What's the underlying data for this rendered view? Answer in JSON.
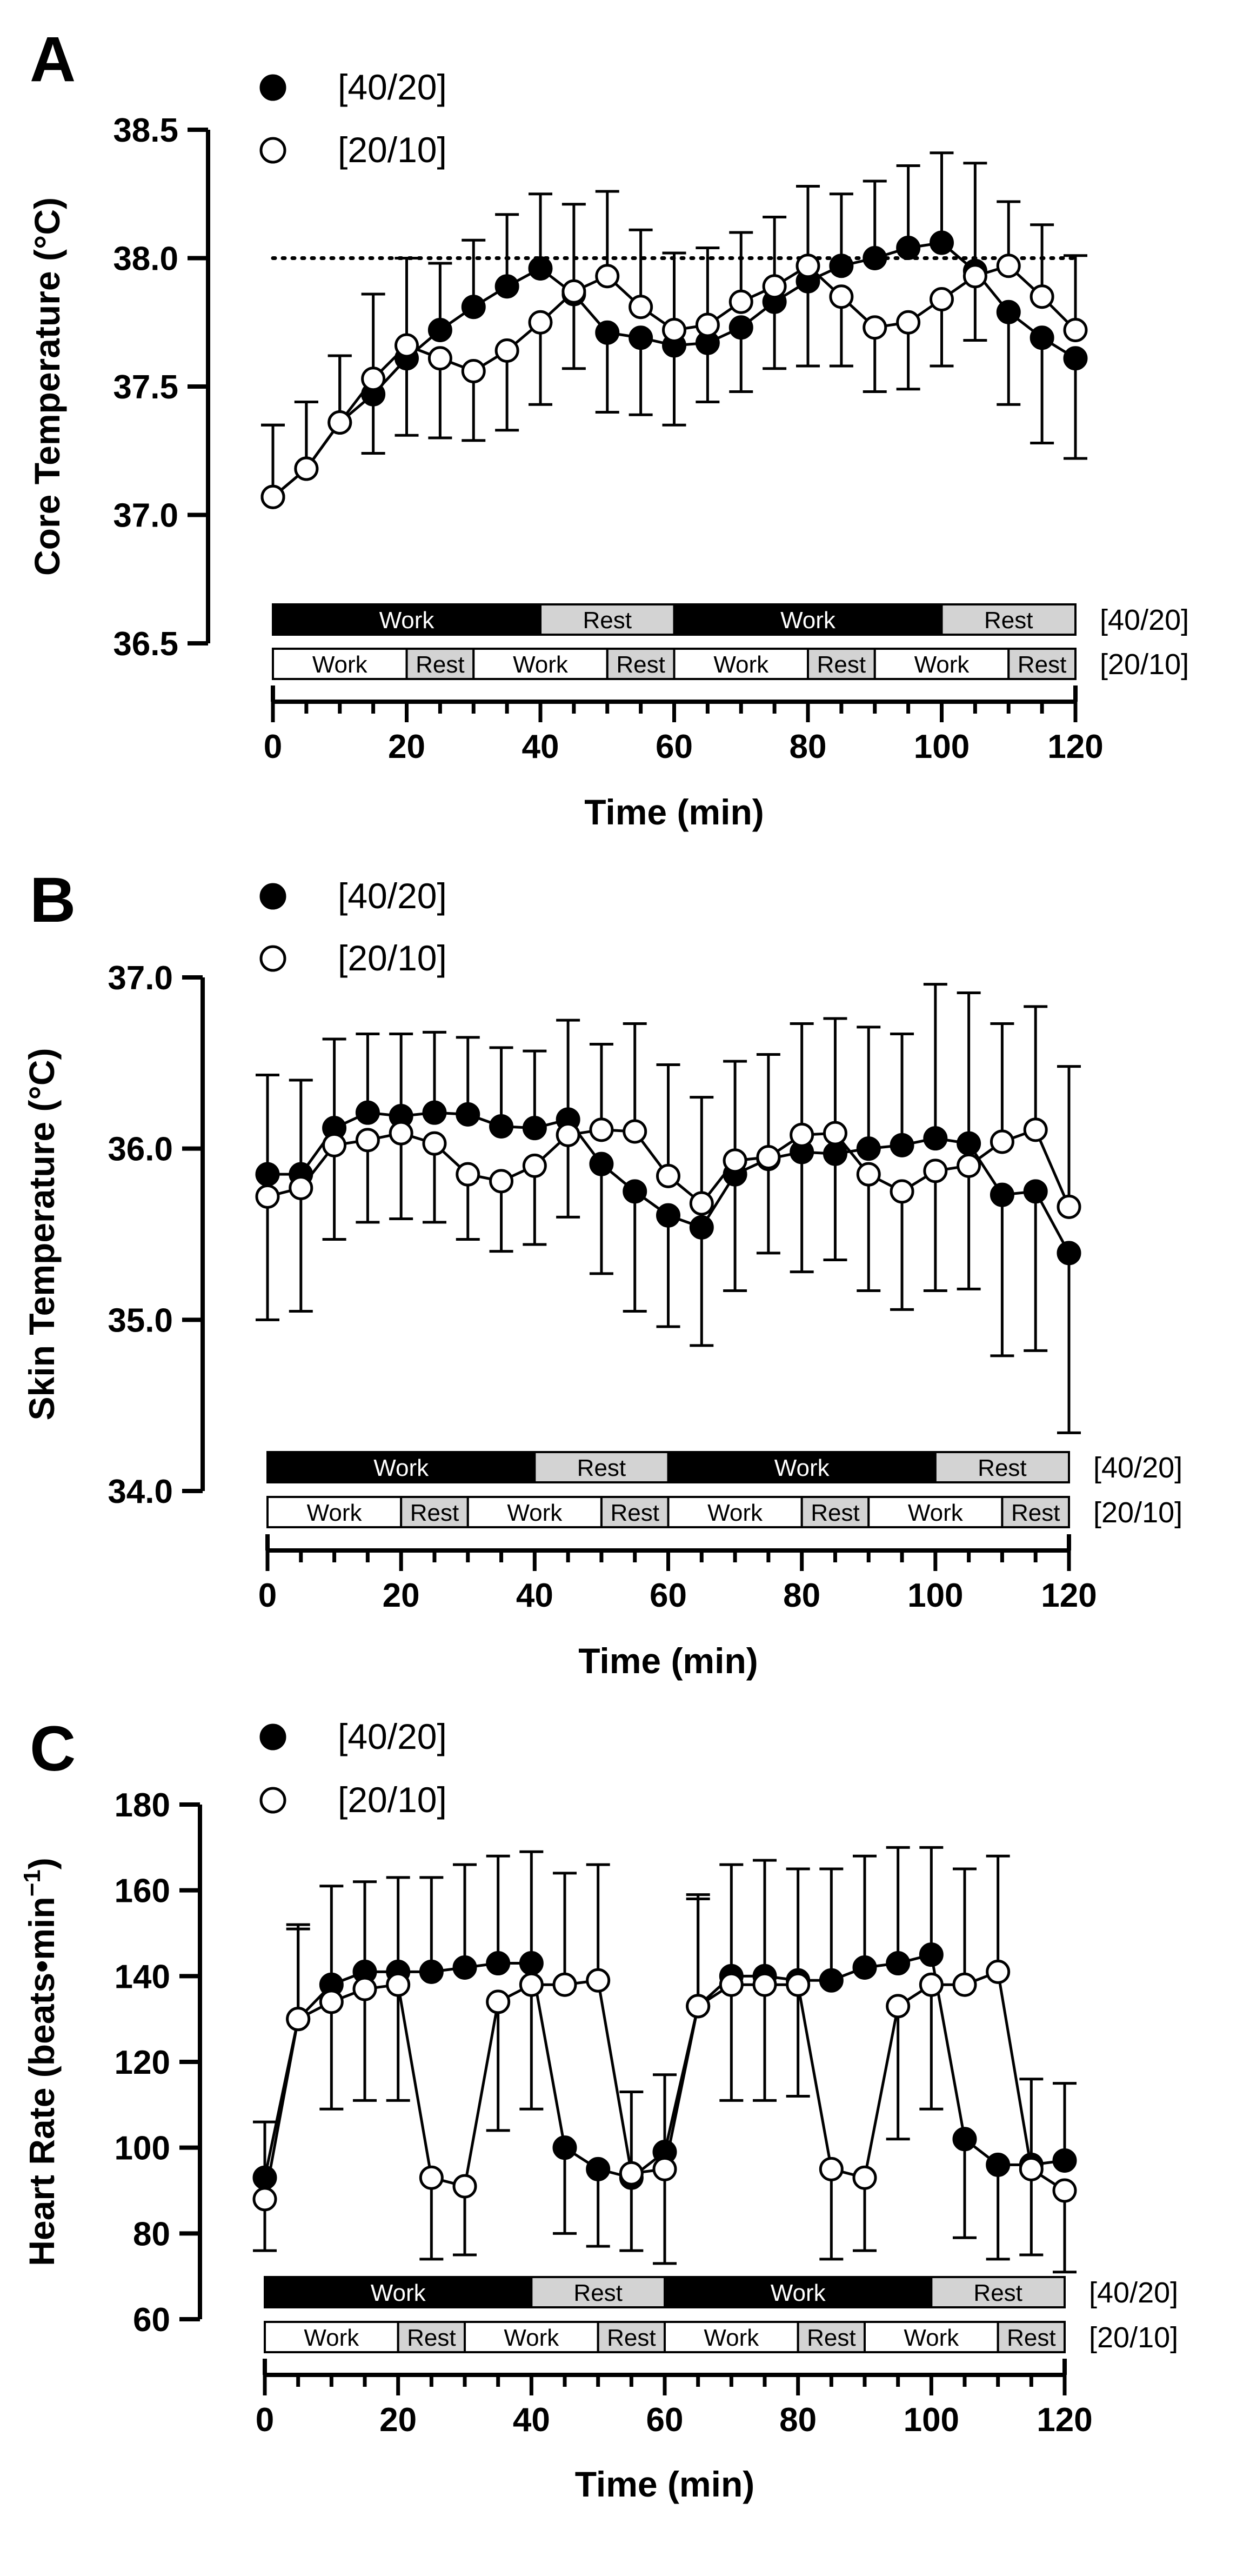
{
  "chart_data": [
    {
      "type": "line",
      "panel_label": "A",
      "xlabel": "Time (min)",
      "ylabel": "Core Temperature (°C)",
      "xlim": [
        0,
        120
      ],
      "ylim": [
        36.5,
        38.5
      ],
      "xticks": [
        "0",
        "20",
        "40",
        "60",
        "80",
        "100",
        "120"
      ],
      "yticks": [
        "36.5",
        "37.0",
        "37.5",
        "38.0",
        "38.5"
      ],
      "reference_line": 38.0,
      "x": [
        0,
        5,
        10,
        15,
        20,
        25,
        30,
        35,
        40,
        45,
        50,
        55,
        60,
        65,
        70,
        75,
        80,
        85,
        90,
        95,
        100,
        105,
        110,
        115,
        120
      ],
      "series": [
        {
          "name": "[40/20]",
          "marker": "filled",
          "values": [
            37.07,
            37.18,
            37.36,
            37.47,
            37.61,
            37.72,
            37.81,
            37.89,
            37.96,
            37.86,
            37.71,
            37.69,
            37.66,
            37.67,
            37.73,
            37.83,
            37.91,
            37.97,
            38.0,
            38.04,
            38.06,
            37.95,
            37.79,
            37.69,
            37.61
          ],
          "errors": [
            0.28,
            0.26,
            0.26,
            0.23,
            0.3,
            0.26,
            0.26,
            0.28,
            0.29,
            0.29,
            0.31,
            0.3,
            0.31,
            0.23,
            0.25,
            0.26,
            0.33,
            0.28,
            0.3,
            0.32,
            0.35,
            0.42,
            0.36,
            0.41,
            0.39
          ]
        },
        {
          "name": "[20/10]",
          "marker": "open",
          "values": [
            37.07,
            37.18,
            37.36,
            37.53,
            37.66,
            37.61,
            37.56,
            37.64,
            37.75,
            37.87,
            37.93,
            37.81,
            37.72,
            37.74,
            37.83,
            37.89,
            37.97,
            37.85,
            37.73,
            37.75,
            37.84,
            37.93,
            37.97,
            37.85,
            37.72
          ],
          "errors": [
            0.28,
            0.26,
            0.26,
            0.33,
            0.34,
            0.31,
            0.27,
            0.31,
            0.32,
            0.34,
            0.33,
            0.3,
            0.3,
            0.3,
            0.27,
            0.27,
            0.31,
            0.27,
            0.25,
            0.26,
            0.26,
            0.25,
            0.25,
            0.28,
            0.29
          ]
        }
      ],
      "schedule_bars": [
        {
          "label": "[40/20]",
          "blocks": [
            {
              "start": 0,
              "end": 40,
              "label": "Work",
              "kind": "work"
            },
            {
              "start": 40,
              "end": 60,
              "label": "Rest",
              "kind": "rest"
            },
            {
              "start": 60,
              "end": 100,
              "label": "Work",
              "kind": "work"
            },
            {
              "start": 100,
              "end": 120,
              "label": "Rest",
              "kind": "rest"
            }
          ]
        },
        {
          "label": "[20/10]",
          "blocks": [
            {
              "start": 0,
              "end": 20,
              "label": "Work",
              "kind": "work"
            },
            {
              "start": 20,
              "end": 30,
              "label": "Rest",
              "kind": "rest"
            },
            {
              "start": 30,
              "end": 50,
              "label": "Work",
              "kind": "work"
            },
            {
              "start": 50,
              "end": 60,
              "label": "Rest",
              "kind": "rest"
            },
            {
              "start": 60,
              "end": 80,
              "label": "Work",
              "kind": "work"
            },
            {
              "start": 80,
              "end": 90,
              "label": "Rest",
              "kind": "rest"
            },
            {
              "start": 90,
              "end": 110,
              "label": "Work",
              "kind": "work"
            },
            {
              "start": 110,
              "end": 120,
              "label": "Rest",
              "kind": "rest"
            }
          ]
        }
      ]
    },
    {
      "type": "line",
      "panel_label": "B",
      "xlabel": "Time (min)",
      "ylabel": "Skin Temperature (°C)",
      "xlim": [
        0,
        120
      ],
      "ylim": [
        34.0,
        37.0
      ],
      "xticks": [
        "0",
        "20",
        "40",
        "60",
        "80",
        "100",
        "120"
      ],
      "yticks": [
        "34.0",
        "35.0",
        "36.0",
        "37.0"
      ],
      "x": [
        0,
        5,
        10,
        15,
        20,
        25,
        30,
        35,
        40,
        45,
        50,
        55,
        60,
        65,
        70,
        75,
        80,
        85,
        90,
        95,
        100,
        105,
        110,
        115,
        120
      ],
      "series": [
        {
          "name": "[40/20]",
          "marker": "filled",
          "values": [
            35.85,
            35.85,
            36.12,
            36.21,
            36.19,
            36.21,
            36.2,
            36.13,
            36.12,
            36.17,
            35.91,
            35.75,
            35.61,
            35.54,
            35.85,
            35.94,
            35.98,
            35.97,
            36.0,
            36.02,
            36.06,
            36.03,
            35.73,
            35.75,
            35.39
          ],
          "errors": [
            0.58,
            0.55,
            0.52,
            0.46,
            0.48,
            0.47,
            0.45,
            0.46,
            0.45,
            0.58,
            0.64,
            0.7,
            0.65,
            0.69,
            0.68,
            0.55,
            0.7,
            0.62,
            0.71,
            0.65,
            0.9,
            0.88,
            0.94,
            0.93,
            1.05
          ]
        },
        {
          "name": "[20/10]",
          "marker": "open",
          "values": [
            35.72,
            35.77,
            36.02,
            36.05,
            36.09,
            36.03,
            35.85,
            35.81,
            35.9,
            36.08,
            36.11,
            36.1,
            35.84,
            35.68,
            35.93,
            35.95,
            36.08,
            36.09,
            35.85,
            35.75,
            35.87,
            35.9,
            36.04,
            36.11,
            35.66
          ],
          "errors": [
            0.72,
            0.72,
            0.55,
            0.48,
            0.5,
            0.46,
            0.38,
            0.41,
            0.46,
            0.48,
            0.5,
            0.63,
            0.65,
            0.62,
            0.58,
            0.6,
            0.65,
            0.67,
            0.68,
            0.69,
            0.7,
            0.72,
            0.69,
            0.72,
            0.82
          ]
        }
      ],
      "schedule_bars": [
        {
          "label": "[40/20]",
          "blocks": [
            {
              "start": 0,
              "end": 40,
              "label": "Work",
              "kind": "work"
            },
            {
              "start": 40,
              "end": 60,
              "label": "Rest",
              "kind": "rest"
            },
            {
              "start": 60,
              "end": 100,
              "label": "Work",
              "kind": "work"
            },
            {
              "start": 100,
              "end": 120,
              "label": "Rest",
              "kind": "rest"
            }
          ]
        },
        {
          "label": "[20/10]",
          "blocks": [
            {
              "start": 0,
              "end": 20,
              "label": "Work",
              "kind": "work"
            },
            {
              "start": 20,
              "end": 30,
              "label": "Rest",
              "kind": "rest"
            },
            {
              "start": 30,
              "end": 50,
              "label": "Work",
              "kind": "work"
            },
            {
              "start": 50,
              "end": 60,
              "label": "Rest",
              "kind": "rest"
            },
            {
              "start": 60,
              "end": 80,
              "label": "Work",
              "kind": "work"
            },
            {
              "start": 80,
              "end": 90,
              "label": "Rest",
              "kind": "rest"
            },
            {
              "start": 90,
              "end": 110,
              "label": "Work",
              "kind": "work"
            },
            {
              "start": 110,
              "end": 120,
              "label": "Rest",
              "kind": "rest"
            }
          ]
        }
      ]
    },
    {
      "type": "line",
      "panel_label": "C",
      "xlabel": "Time (min)",
      "ylabel": "Heart Rate (beats•min",
      "ylabel_superscript": "−1",
      "ylabel_suffix": ")",
      "xlim": [
        0,
        120
      ],
      "ylim": [
        60,
        180
      ],
      "xticks": [
        "0",
        "20",
        "40",
        "60",
        "80",
        "100",
        "120"
      ],
      "yticks": [
        "60",
        "80",
        "100",
        "120",
        "140",
        "160",
        "180"
      ],
      "x": [
        0,
        5,
        10,
        15,
        20,
        25,
        30,
        35,
        40,
        45,
        50,
        55,
        60,
        65,
        70,
        75,
        80,
        85,
        90,
        95,
        100,
        105,
        110,
        115,
        120
      ],
      "series": [
        {
          "name": "[40/20]",
          "marker": "filled",
          "values": [
            93,
            130,
            138,
            141,
            141,
            141,
            142,
            143,
            143,
            100,
            95,
            93,
            99,
            133,
            140,
            140,
            139,
            139,
            142,
            143,
            145,
            102,
            96,
            96,
            97
          ],
          "errors": [
            13,
            21,
            23,
            21,
            22,
            22,
            24,
            25,
            26,
            20,
            18,
            17,
            18,
            26,
            26,
            27,
            26,
            26,
            26,
            27,
            25,
            23,
            22,
            20,
            18
          ]
        },
        {
          "name": "[20/10]",
          "marker": "open",
          "values": [
            88,
            130,
            134,
            137,
            138,
            93,
            91,
            134,
            138,
            138,
            139,
            94,
            95,
            133,
            138,
            138,
            138,
            95,
            93,
            133,
            138,
            138,
            141,
            95,
            90
          ],
          "errors": [
            12,
            22,
            25,
            26,
            27,
            19,
            16,
            30,
            29,
            26,
            27,
            19,
            22,
            25,
            27,
            27,
            26,
            21,
            17,
            31,
            29,
            27,
            27,
            20,
            19
          ]
        }
      ],
      "schedule_bars": [
        {
          "label": "[40/20]",
          "blocks": [
            {
              "start": 0,
              "end": 40,
              "label": "Work",
              "kind": "work"
            },
            {
              "start": 40,
              "end": 60,
              "label": "Rest",
              "kind": "rest"
            },
            {
              "start": 60,
              "end": 100,
              "label": "Work",
              "kind": "work"
            },
            {
              "start": 100,
              "end": 120,
              "label": "Rest",
              "kind": "rest"
            }
          ]
        },
        {
          "label": "[20/10]",
          "blocks": [
            {
              "start": 0,
              "end": 20,
              "label": "Work",
              "kind": "work"
            },
            {
              "start": 20,
              "end": 30,
              "label": "Rest",
              "kind": "rest"
            },
            {
              "start": 30,
              "end": 50,
              "label": "Work",
              "kind": "work"
            },
            {
              "start": 50,
              "end": 60,
              "label": "Rest",
              "kind": "rest"
            },
            {
              "start": 60,
              "end": 80,
              "label": "Work",
              "kind": "work"
            },
            {
              "start": 80,
              "end": 90,
              "label": "Rest",
              "kind": "rest"
            },
            {
              "start": 90,
              "end": 110,
              "label": "Work",
              "kind": "work"
            },
            {
              "start": 110,
              "end": 120,
              "label": "Rest",
              "kind": "rest"
            }
          ]
        }
      ]
    }
  ],
  "colors": {
    "ink": "#000000",
    "work_40_20": "#000000",
    "rest": "#d3d3d3",
    "work_20_10": "#ffffff",
    "open_marker_fill": "#ffffff"
  }
}
